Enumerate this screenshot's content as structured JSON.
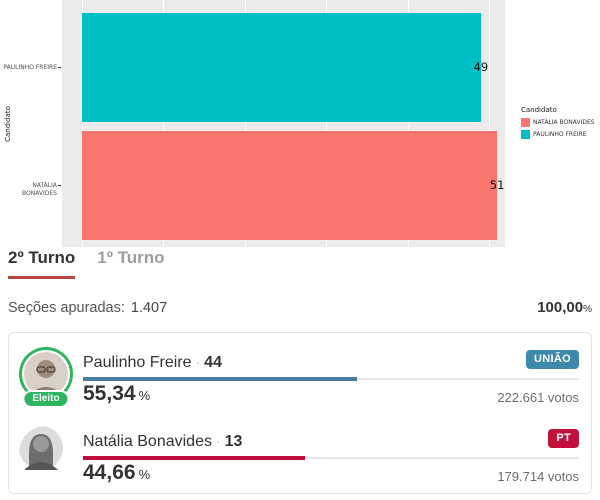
{
  "chart_data": {
    "type": "bar",
    "orientation": "horizontal",
    "categories": [
      "PAULINHO FREIRE",
      "NATÁLIA BONAVIDES"
    ],
    "values": [
      49,
      51
    ],
    "bar_labels": [
      "49",
      "51"
    ],
    "colors": [
      "#00BFC4",
      "#F8766D"
    ],
    "xlabel": "",
    "ylabel": "Candidato",
    "xlim": [
      0,
      52
    ],
    "grid": true,
    "panel_background": "#EBEBEB",
    "legend": {
      "title": "Candidato",
      "position": "right",
      "entries": [
        {
          "label": "NATÁLIA BONAVIDES",
          "color": "#F8766D"
        },
        {
          "label": "PAULINHO FREIRE",
          "color": "#00BFC4"
        }
      ]
    }
  },
  "tabs": [
    {
      "label": "2º Turno",
      "active": true
    },
    {
      "label": "1º Turno",
      "active": false
    }
  ],
  "apuracao": {
    "label": "Seções apuradas:",
    "value": "1.407",
    "percent": "100,00",
    "percent_symbol": "%"
  },
  "results": {
    "candidates": [
      {
        "name": "Paulinho Freire",
        "separator": "·",
        "number": "44",
        "party": "UNIÃO",
        "party_color": "#3d89ac",
        "percent": "55,34",
        "percent_symbol": "%",
        "votes": "222.661 votos",
        "bar_percent": 55.34,
        "bar_color": "#47809d",
        "status": "Eleito"
      },
      {
        "name": "Natália Bonavides",
        "separator": "·",
        "number": "13",
        "party": "PT",
        "party_color": "#c2103c",
        "percent": "44,66",
        "percent_symbol": "%",
        "votes": "179.714 votos",
        "bar_percent": 44.66,
        "bar_color": "#c00d3c",
        "status": ""
      }
    ]
  }
}
